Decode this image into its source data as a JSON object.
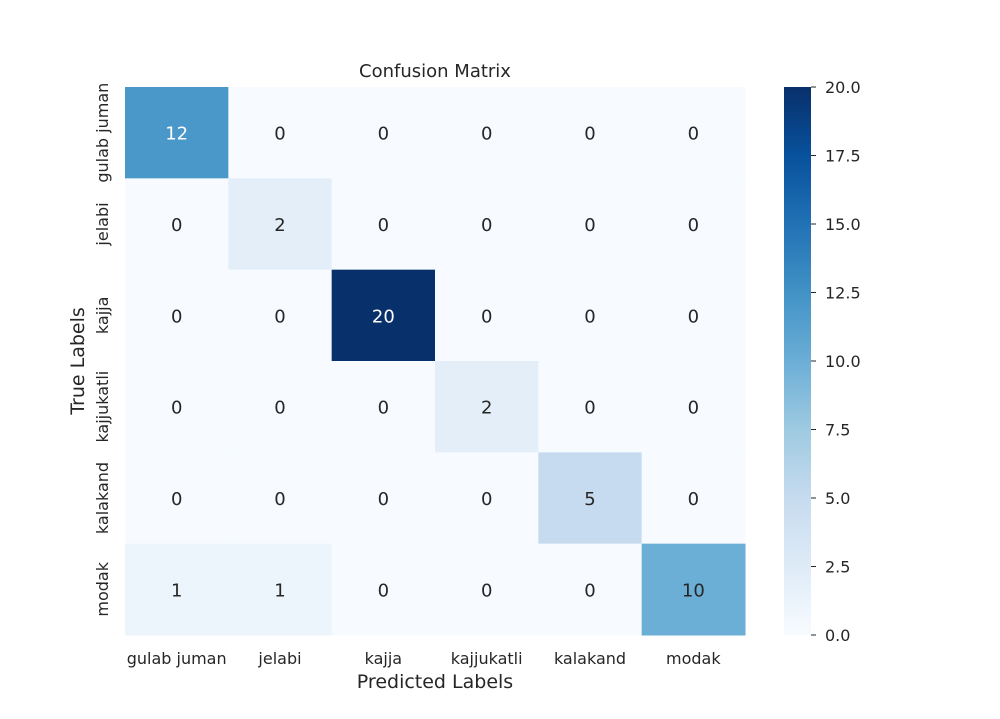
{
  "chart_data": {
    "type": "heatmap",
    "title": "Confusion Matrix",
    "xlabel": "Predicted Labels",
    "ylabel": "True Labels",
    "x_categories": [
      "gulab juman",
      "jelabi",
      "kajja",
      "kajjukatli",
      "kalakand",
      "modak"
    ],
    "y_categories": [
      "gulab juman",
      "jelabi",
      "kajja",
      "kajjukatli",
      "kalakand",
      "modak"
    ],
    "matrix": [
      [
        12,
        0,
        0,
        0,
        0,
        0
      ],
      [
        0,
        2,
        0,
        0,
        0,
        0
      ],
      [
        0,
        0,
        20,
        0,
        0,
        0
      ],
      [
        0,
        0,
        0,
        2,
        0,
        0
      ],
      [
        0,
        0,
        0,
        0,
        5,
        0
      ],
      [
        1,
        1,
        0,
        0,
        0,
        10
      ]
    ],
    "colorbar": {
      "min": 0,
      "max": 20,
      "ticks": [
        "0.0",
        "2.5",
        "5.0",
        "7.5",
        "10.0",
        "12.5",
        "15.0",
        "17.5",
        "20.0"
      ]
    },
    "colormap": "Blues",
    "colors": {
      "low": "#f7fbff",
      "high": "#08306b",
      "text_dark": "#262626",
      "text_light": "#ffffff"
    },
    "grid": false
  }
}
